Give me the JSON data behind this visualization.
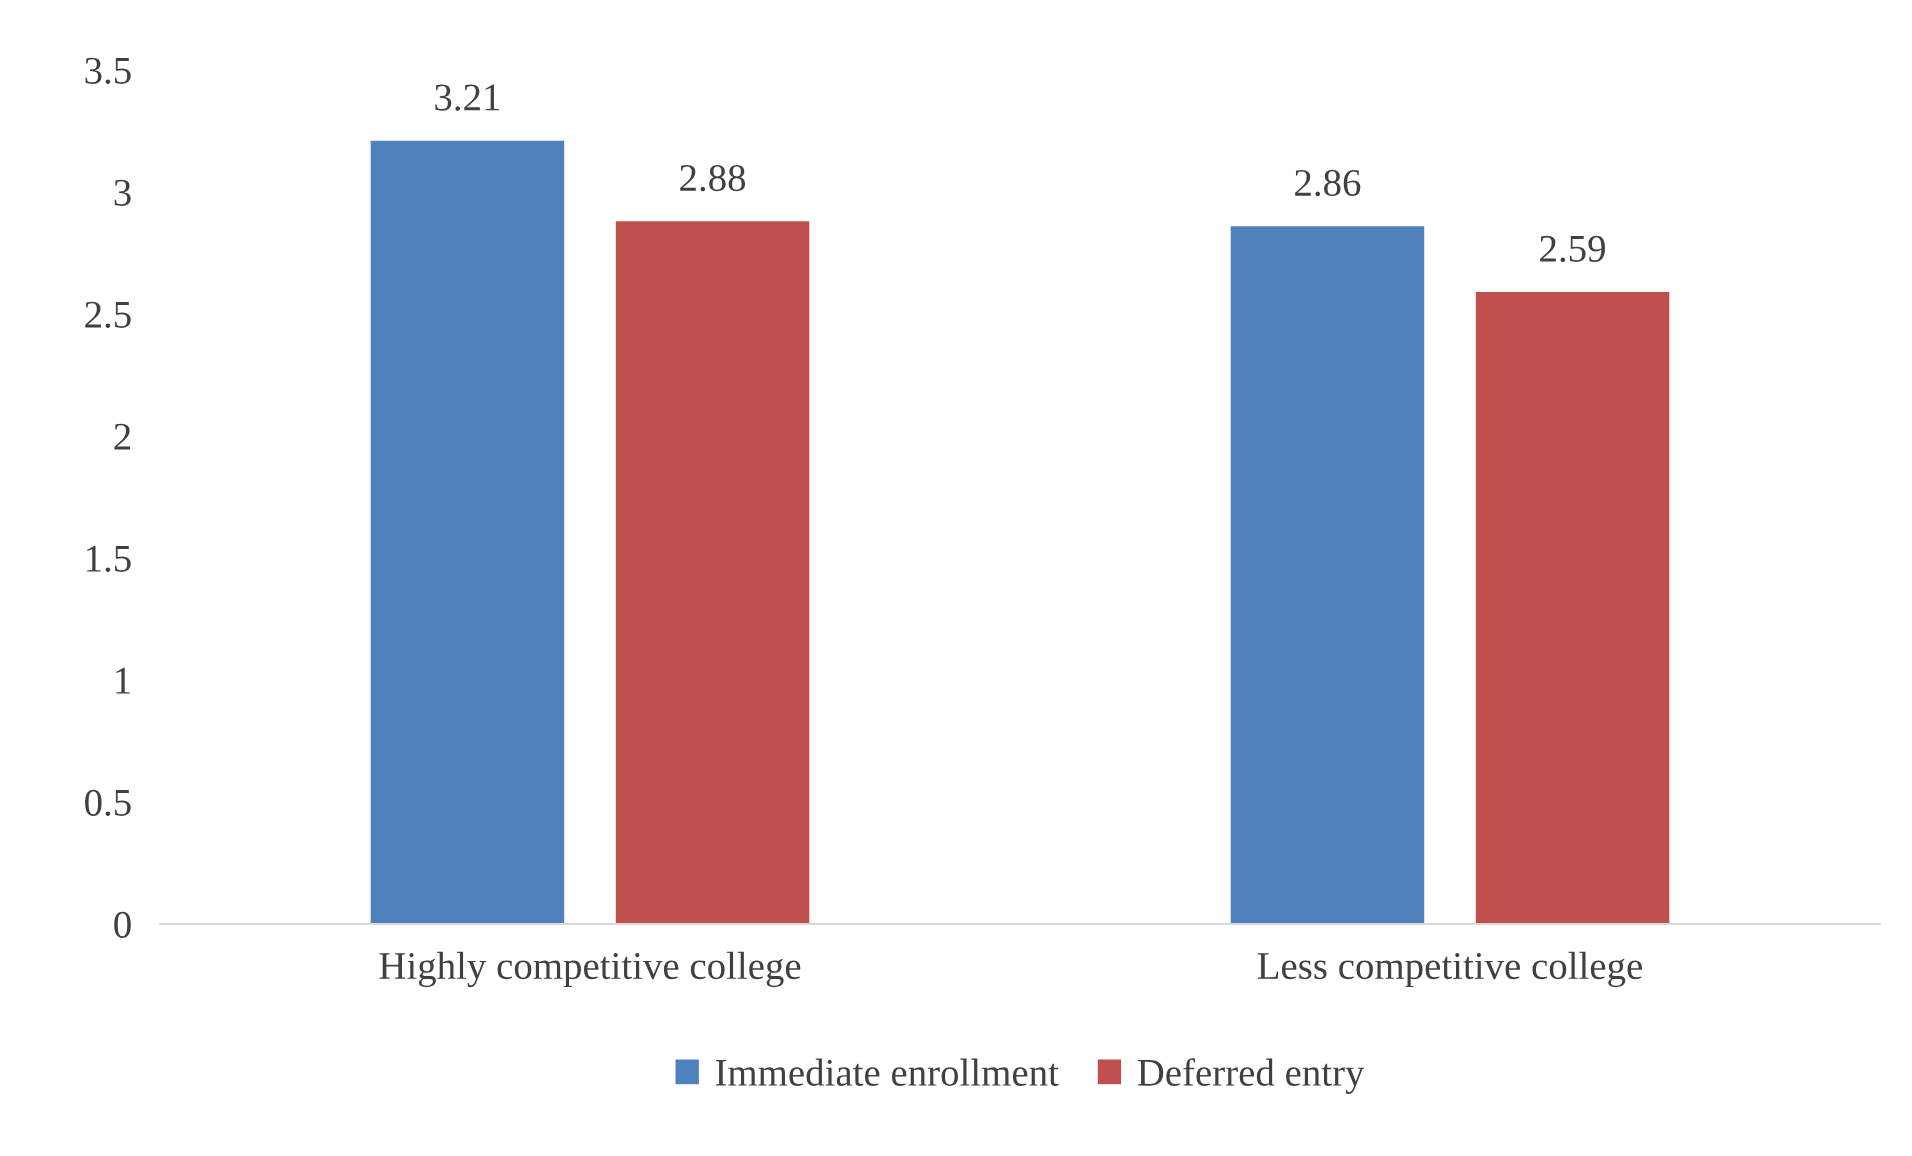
{
  "chart_data": {
    "type": "bar",
    "categories": [
      "Highly competitive college",
      "Less competitive college"
    ],
    "series": [
      {
        "name": "Immediate enrollment",
        "color": "#4f81bd",
        "values": [
          3.21,
          2.86
        ]
      },
      {
        "name": "Deferred entry",
        "color": "#c0504d",
        "values": [
          2.88,
          2.59
        ]
      }
    ],
    "ylim": [
      0,
      3.5
    ],
    "yticks": [
      0,
      0.5,
      1,
      1.5,
      2,
      2.5,
      3,
      3.5
    ],
    "data_labels": true,
    "grid": false,
    "legend": "bottom"
  }
}
